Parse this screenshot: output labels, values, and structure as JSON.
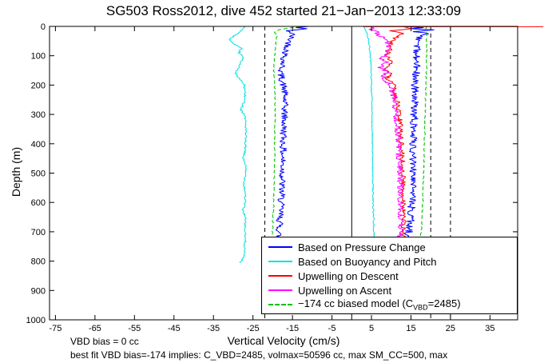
{
  "title": "SG503 Ross2012, dive 452 started 21−Jan−2013 12:33:09",
  "xlabel": "Vertical Velocity (cm/s)",
  "ylabel": "Depth (m)",
  "footnotes": {
    "line1": "VBD bias = 0 cc",
    "line2": "best fit VBD bias=-174 implies: C_VBD=2485, volmax=50596 cc, max SM_CC=500, max"
  },
  "legend": {
    "entries": [
      {
        "label": "Based on Pressure Change",
        "color": "#0000ff",
        "dash": false
      },
      {
        "label": "Based on Buoyancy and Pitch",
        "color": "#00e0e0",
        "dash": false
      },
      {
        "label": "Upwelling on Descent",
        "color": "#ff0000",
        "dash": false
      },
      {
        "label": "Upwelling on Ascent",
        "color": "#ff00ff",
        "dash": false
      },
      {
        "label": "−174 cc biased model (C_VBD=2485)",
        "color": "#00c000",
        "dash": true,
        "parts": {
          "pre": "−174 cc biased model (C",
          "sub": "VBD",
          "post": "=2485)"
        }
      }
    ]
  },
  "chart_data": {
    "type": "line",
    "title": "SG503 Ross2012, dive 452 started 21-Jan-2013 12:33:09",
    "xlabel": "Vertical Velocity (cm/s)",
    "ylabel": "Depth (m)",
    "xlim": [
      -76.5,
      42
    ],
    "ylim": [
      0,
      1000
    ],
    "y_inverted": true,
    "grid": false,
    "legend_position": "lower-right",
    "xticks": [
      -75,
      -65,
      -55,
      -45,
      -35,
      -25,
      -15,
      -5,
      5,
      15,
      25,
      35
    ],
    "yticks": [
      0,
      100,
      200,
      300,
      400,
      500,
      600,
      700,
      800,
      900,
      1000
    ],
    "guides": {
      "solid_x": [
        0
      ],
      "dashed_x": [
        -22,
        20,
        25
      ]
    },
    "series": [
      {
        "name": "pressure-change-descent",
        "legend": "Based on Pressure Change",
        "color": "#0000ff",
        "dash": false,
        "noise": 0.9,
        "points": [
          [
            0,
            -11
          ],
          [
            4,
            -14
          ],
          [
            8,
            -12
          ],
          [
            15,
            -16
          ],
          [
            25,
            -15
          ],
          [
            40,
            -15.5
          ],
          [
            60,
            -16
          ],
          [
            80,
            -16.5
          ],
          [
            100,
            -17
          ],
          [
            130,
            -17.5
          ],
          [
            160,
            -18
          ],
          [
            190,
            -17.5
          ],
          [
            220,
            -17
          ],
          [
            260,
            -17
          ],
          [
            300,
            -17
          ],
          [
            340,
            -17.2
          ],
          [
            380,
            -17.3
          ],
          [
            420,
            -17.4
          ],
          [
            460,
            -17.5
          ],
          [
            500,
            -17.5
          ],
          [
            540,
            -17.7
          ],
          [
            580,
            -17.8
          ],
          [
            620,
            -18
          ],
          [
            660,
            -18.2
          ],
          [
            700,
            -18.4
          ],
          [
            735,
            -18.6
          ]
        ]
      },
      {
        "name": "pressure-change-ascent",
        "legend": "Based on Pressure Change",
        "color": "#0000ff",
        "dash": false,
        "noise": 1.0,
        "points": [
          [
            735,
            13.5
          ],
          [
            720,
            14
          ],
          [
            700,
            14.5
          ],
          [
            650,
            15
          ],
          [
            600,
            15.2
          ],
          [
            550,
            15.3
          ],
          [
            500,
            15.4
          ],
          [
            450,
            15.5
          ],
          [
            400,
            15.6
          ],
          [
            350,
            15.7
          ],
          [
            300,
            15.8
          ],
          [
            250,
            16
          ],
          [
            200,
            16
          ],
          [
            150,
            16.3
          ],
          [
            100,
            16.5
          ],
          [
            70,
            16.6
          ],
          [
            50,
            17
          ],
          [
            35,
            17.5
          ],
          [
            25,
            19
          ],
          [
            18,
            16
          ],
          [
            12,
            20
          ],
          [
            8,
            15
          ],
          [
            4,
            19
          ],
          [
            0,
            13
          ]
        ]
      },
      {
        "name": "buoyancy-pitch-descent",
        "legend": "Based on Buoyancy and Pitch",
        "color": "#00e0e0",
        "dash": false,
        "noise": 0.25,
        "points": [
          [
            0,
            -27
          ],
          [
            15,
            -28
          ],
          [
            30,
            -29.5
          ],
          [
            45,
            -31
          ],
          [
            60,
            -30
          ],
          [
            75,
            -28
          ],
          [
            90,
            -28.5
          ],
          [
            105,
            -27.5
          ],
          [
            120,
            -28
          ],
          [
            140,
            -28.5
          ],
          [
            155,
            -29.5
          ],
          [
            170,
            -29
          ],
          [
            185,
            -28
          ],
          [
            200,
            -27.2
          ],
          [
            230,
            -27
          ],
          [
            260,
            -27.3
          ],
          [
            285,
            -28
          ],
          [
            305,
            -27
          ],
          [
            340,
            -26.8
          ],
          [
            380,
            -26.9
          ],
          [
            420,
            -27
          ],
          [
            450,
            -27.5
          ],
          [
            470,
            -26.9
          ],
          [
            510,
            -26.9
          ],
          [
            540,
            -27.3
          ],
          [
            570,
            -26.9
          ],
          [
            610,
            -27.1
          ],
          [
            625,
            -27.6
          ],
          [
            645,
            -27
          ],
          [
            690,
            -27
          ],
          [
            730,
            -27
          ],
          [
            760,
            -27.1
          ],
          [
            785,
            -27.3
          ],
          [
            800,
            -27.9
          ],
          [
            806,
            -28.3
          ]
        ]
      },
      {
        "name": "buoyancy-pitch-ascent",
        "legend": "Based on Buoyancy and Pitch",
        "color": "#00e0e0",
        "dash": false,
        "noise": 0.15,
        "points": [
          [
            735,
            5.8
          ],
          [
            700,
            5.6
          ],
          [
            650,
            5.5
          ],
          [
            600,
            5.4
          ],
          [
            550,
            5.4
          ],
          [
            500,
            5.3
          ],
          [
            450,
            5.3
          ],
          [
            400,
            5.2
          ],
          [
            350,
            5.2
          ],
          [
            300,
            5.1
          ],
          [
            250,
            5.1
          ],
          [
            200,
            5
          ],
          [
            150,
            4.9
          ],
          [
            100,
            4.7
          ],
          [
            60,
            4.4
          ],
          [
            30,
            4
          ],
          [
            10,
            3.4
          ],
          [
            0,
            3
          ]
        ]
      },
      {
        "name": "upwelling-descent",
        "legend": "Upwelling on Descent",
        "color": "#ff0000",
        "dash": false,
        "noise": 0.7,
        "points": [
          [
            0,
            13
          ],
          [
            8,
            15
          ],
          [
            15,
            10
          ],
          [
            25,
            13
          ],
          [
            40,
            11
          ],
          [
            60,
            10
          ],
          [
            80,
            9.5
          ],
          [
            100,
            9
          ],
          [
            120,
            10
          ],
          [
            140,
            8.5
          ],
          [
            160,
            9.5
          ],
          [
            180,
            9
          ],
          [
            200,
            10.5
          ],
          [
            230,
            11
          ],
          [
            260,
            11.5
          ],
          [
            300,
            12
          ],
          [
            340,
            12.3
          ],
          [
            380,
            12.5
          ],
          [
            420,
            12.6
          ],
          [
            460,
            12.8
          ],
          [
            500,
            13
          ],
          [
            540,
            13
          ],
          [
            580,
            13.1
          ],
          [
            620,
            13.2
          ],
          [
            660,
            13.1
          ],
          [
            700,
            13
          ],
          [
            735,
            12.6
          ]
        ]
      },
      {
        "name": "upwelling-descent-surface",
        "legend": "Upwelling on Descent",
        "color": "#ff0000",
        "dash": false,
        "noise": 0,
        "raw": true,
        "noclip": true,
        "points": [
          [
            1,
            3
          ],
          [
            1,
            48.5
          ]
        ]
      },
      {
        "name": "upwelling-ascent",
        "legend": "Upwelling on Ascent",
        "color": "#ff00ff",
        "dash": false,
        "noise": 0.8,
        "points": [
          [
            735,
            12
          ],
          [
            700,
            12.4
          ],
          [
            650,
            12.5
          ],
          [
            600,
            12.4
          ],
          [
            550,
            12.3
          ],
          [
            500,
            12.1
          ],
          [
            450,
            12
          ],
          [
            400,
            11.8
          ],
          [
            350,
            11.5
          ],
          [
            300,
            11.2
          ],
          [
            250,
            10.8
          ],
          [
            220,
            10.3
          ],
          [
            200,
            9.8
          ],
          [
            185,
            8.6
          ],
          [
            170,
            7.8
          ],
          [
            155,
            9
          ],
          [
            140,
            7.2
          ],
          [
            125,
            8.8
          ],
          [
            110,
            7.5
          ],
          [
            95,
            8.8
          ],
          [
            80,
            9.2
          ],
          [
            65,
            9.6
          ],
          [
            50,
            8.8
          ],
          [
            40,
            8
          ],
          [
            30,
            7
          ],
          [
            20,
            6.2
          ],
          [
            10,
            5.2
          ],
          [
            0,
            4.6
          ]
        ]
      },
      {
        "name": "biased-model-descent",
        "legend": "-174 cc biased model (C_VBD=2485)",
        "color": "#00c000",
        "dash": true,
        "noise": 0.15,
        "points": [
          [
            0,
            -13
          ],
          [
            6,
            -16
          ],
          [
            12,
            -18.5
          ],
          [
            20,
            -19.5
          ],
          [
            35,
            -19
          ],
          [
            60,
            -19.3
          ],
          [
            100,
            -19.5
          ],
          [
            150,
            -19.7
          ],
          [
            200,
            -19.5
          ],
          [
            260,
            -19.4
          ],
          [
            320,
            -19.4
          ],
          [
            380,
            -19.5
          ],
          [
            440,
            -19.5
          ],
          [
            500,
            -19.6
          ],
          [
            560,
            -19.7
          ],
          [
            620,
            -19.8
          ],
          [
            680,
            -20
          ],
          [
            735,
            -20.1
          ]
        ]
      },
      {
        "name": "biased-model-ascent",
        "legend": "-174 cc biased model (C_VBD=2485)",
        "color": "#00c000",
        "dash": true,
        "noise": 0.15,
        "points": [
          [
            735,
            17.3
          ],
          [
            700,
            17.6
          ],
          [
            650,
            17.8
          ],
          [
            600,
            18
          ],
          [
            550,
            18.1
          ],
          [
            500,
            18.2
          ],
          [
            450,
            18.3
          ],
          [
            400,
            18.4
          ],
          [
            350,
            18.5
          ],
          [
            300,
            18.6
          ],
          [
            250,
            18.7
          ],
          [
            200,
            18.8
          ],
          [
            150,
            18.9
          ],
          [
            100,
            19
          ],
          [
            60,
            19
          ],
          [
            40,
            18.8
          ],
          [
            25,
            19.2
          ],
          [
            12,
            18.5
          ],
          [
            0,
            19
          ]
        ]
      }
    ]
  }
}
